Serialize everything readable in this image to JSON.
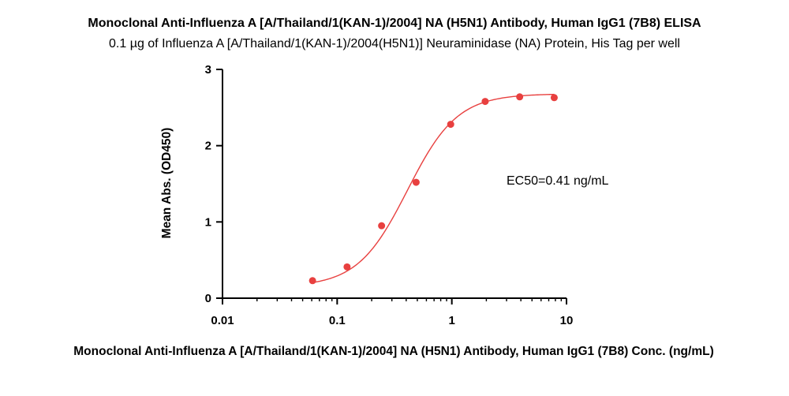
{
  "chart_data": {
    "type": "scatter",
    "title": "Monoclonal Anti-Influenza A [A/Thailand/1(KAN-1)/2004] NA (H5N1) Antibody, Human IgG1 (7B8) ELISA",
    "subtitle": "0.1 µg of Influenza A [A/Thailand/1(KAN-1)/2004(H5N1)] Neuraminidase (NA) Protein, His Tag per well",
    "xlabel": "Monoclonal Anti-Influenza A [A/Thailand/1(KAN-1)/2004] NA (H5N1) Antibody, Human IgG1 (7B8) Conc. (ng/mL)",
    "ylabel": "Mean Abs. (OD450)",
    "x_scale": "log",
    "xlim": [
      0.01,
      10
    ],
    "ylim": [
      0,
      3
    ],
    "x_ticks": [
      {
        "value": 0.01,
        "label": "0.01"
      },
      {
        "value": 0.1,
        "label": "0.1"
      },
      {
        "value": 1,
        "label": "1"
      },
      {
        "value": 10,
        "label": "10"
      }
    ],
    "y_ticks": [
      {
        "value": 0,
        "label": "0"
      },
      {
        "value": 1,
        "label": "1"
      },
      {
        "value": 2,
        "label": "2"
      },
      {
        "value": 3,
        "label": "3"
      }
    ],
    "series": [
      {
        "x": [
          0.061,
          0.122,
          0.244,
          0.488,
          0.977,
          1.953,
          3.906,
          7.813
        ],
        "y": [
          0.23,
          0.41,
          0.95,
          1.52,
          2.28,
          2.58,
          2.64,
          2.63
        ],
        "color": "#e8403f"
      }
    ],
    "fit_curve": {
      "model": "4PL",
      "bottom": 0.15,
      "top": 2.68,
      "ec50": 0.41,
      "hill": 2.0,
      "color": "#e8403f"
    },
    "annotation": "EC50=0.41 ng/mL",
    "grid": false,
    "legend": "none"
  }
}
